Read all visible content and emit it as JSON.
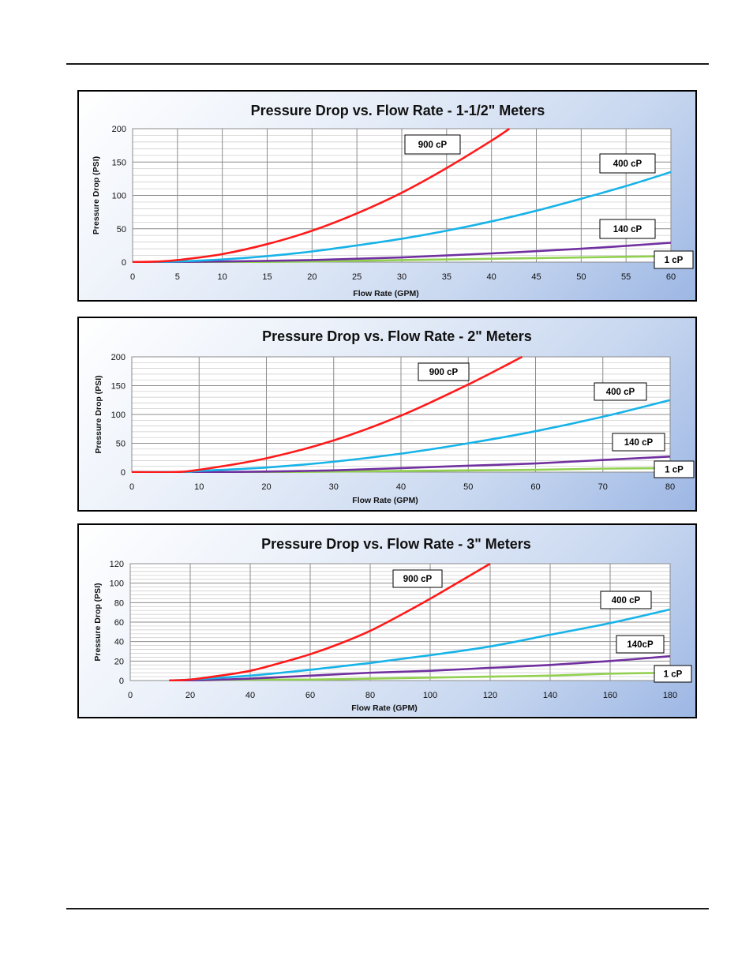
{
  "colors": {
    "900 cP": "#ff1a1a",
    "400 cP": "#17b3e8",
    "140 cP": "#7030a0",
    "1 cP": "#92d050",
    "grid": "#808080",
    "panel_border": "#000000"
  },
  "chart_data": [
    {
      "type": "line",
      "title": "Pressure Drop  vs. Flow Rate - 1-1/2\" Meters",
      "xlabel": "Flow Rate (GPM)",
      "ylabel": "Pressure Drop (PSI)",
      "xlim": [
        0,
        60
      ],
      "ylim": [
        0,
        200
      ],
      "xticks": [
        0,
        5,
        10,
        15,
        20,
        25,
        30,
        35,
        40,
        45,
        50,
        55,
        60
      ],
      "yticks": [
        0,
        50,
        100,
        150,
        200
      ],
      "grid": true,
      "series": [
        {
          "name": "900 cP",
          "x": [
            0,
            3,
            5,
            10,
            15,
            20,
            25,
            30,
            35,
            40,
            42
          ],
          "y": [
            0,
            1,
            3,
            12,
            27,
            47,
            73,
            104,
            141,
            182,
            200
          ]
        },
        {
          "name": "400 cP",
          "x": [
            0,
            5,
            10,
            15,
            20,
            25,
            30,
            35,
            40,
            45,
            50,
            55,
            60
          ],
          "y": [
            0,
            1,
            4,
            9,
            16,
            25,
            35,
            47,
            61,
            77,
            95,
            114,
            135
          ]
        },
        {
          "name": "140 cP",
          "x": [
            0,
            10,
            20,
            30,
            40,
            50,
            60
          ],
          "y": [
            0,
            1,
            3,
            7,
            13,
            20,
            29
          ]
        },
        {
          "name": "1 cP",
          "x": [
            0,
            10,
            20,
            30,
            40,
            50,
            60
          ],
          "y": [
            0,
            0,
            1,
            3,
            5,
            7,
            9
          ]
        }
      ],
      "annotations": [
        {
          "text": "900 cP",
          "series": "900 cP"
        },
        {
          "text": "400 cP",
          "series": "400 cP"
        },
        {
          "text": "140 cP",
          "series": "140 cP"
        },
        {
          "text": "1 cP",
          "series": "1 cP"
        }
      ]
    },
    {
      "type": "line",
      "title": "Pressure Drop vs. Flow Rate - 2\" Meters",
      "xlabel": "Flow Rate (GPM)",
      "ylabel": "Pressure Drop (PSI)",
      "xlim": [
        0,
        80
      ],
      "ylim": [
        0,
        200
      ],
      "xticks": [
        0,
        10,
        20,
        30,
        40,
        50,
        60,
        70,
        80
      ],
      "yticks": [
        0,
        50,
        100,
        150,
        200
      ],
      "grid": true,
      "series": [
        {
          "name": "900 cP",
          "x": [
            0,
            6,
            10,
            20,
            30,
            40,
            50,
            58
          ],
          "y": [
            0,
            0,
            4,
            24,
            55,
            98,
            152,
            200
          ]
        },
        {
          "name": "400 cP",
          "x": [
            0,
            8,
            10,
            20,
            30,
            40,
            50,
            60,
            70,
            80
          ],
          "y": [
            0,
            0,
            2,
            8,
            18,
            32,
            50,
            71,
            96,
            125
          ]
        },
        {
          "name": "140 cP",
          "x": [
            0,
            10,
            20,
            30,
            40,
            50,
            60,
            70,
            80
          ],
          "y": [
            0,
            0,
            1,
            3,
            7,
            11,
            15,
            21,
            27
          ]
        },
        {
          "name": "1 cP",
          "x": [
            0,
            10,
            20,
            30,
            40,
            50,
            60,
            70,
            80
          ],
          "y": [
            0,
            0,
            0,
            1,
            2,
            3,
            4,
            6,
            7
          ]
        }
      ],
      "annotations": [
        {
          "text": "900 cP",
          "series": "900 cP"
        },
        {
          "text": "400 cP",
          "series": "400 cP"
        },
        {
          "text": "140 cP",
          "series": "140 cP"
        },
        {
          "text": "1 cP",
          "series": "1 cP"
        }
      ]
    },
    {
      "type": "line",
      "title": "Pressure Drop vs. Flow Rate - 3\" Meters",
      "xlabel": "Flow Rate (GPM)",
      "ylabel": "Pressure Drop (PSI)",
      "xlim": [
        0,
        180
      ],
      "ylim": [
        0,
        120
      ],
      "xticks": [
        0,
        20,
        40,
        60,
        80,
        100,
        120,
        140,
        160,
        180
      ],
      "yticks": [
        0,
        20,
        40,
        60,
        80,
        100,
        120
      ],
      "grid": true,
      "series": [
        {
          "name": "900 cP",
          "x": [
            13,
            20,
            30,
            40,
            50,
            60,
            70,
            80,
            90,
            100,
            110,
            120
          ],
          "y": [
            0,
            1,
            5,
            10,
            18,
            27,
            38,
            51,
            67,
            84,
            102,
            120
          ]
        },
        {
          "name": "400 cP",
          "x": [
            13,
            20,
            40,
            60,
            80,
            100,
            120,
            140,
            160,
            180
          ],
          "y": [
            0,
            1,
            5,
            11,
            18,
            26,
            35,
            47,
            59,
            73
          ]
        },
        {
          "name": "140 cP",
          "x": [
            13,
            20,
            40,
            60,
            80,
            100,
            120,
            140,
            160,
            180
          ],
          "y": [
            0,
            0,
            2,
            5,
            8,
            10,
            13,
            16,
            20,
            25
          ]
        },
        {
          "name": "1 cP",
          "x": [
            13,
            20,
            40,
            60,
            80,
            100,
            120,
            140,
            160,
            180
          ],
          "y": [
            0,
            0,
            1,
            1,
            2,
            3,
            4,
            5,
            7,
            8
          ]
        }
      ],
      "annotations": [
        {
          "text": "900 cP",
          "series": "900 cP"
        },
        {
          "text": "400 cP",
          "series": "400 cP"
        },
        {
          "text": "140cP",
          "series": "140 cP"
        },
        {
          "text": "1 cP",
          "series": "1 cP"
        }
      ]
    }
  ]
}
